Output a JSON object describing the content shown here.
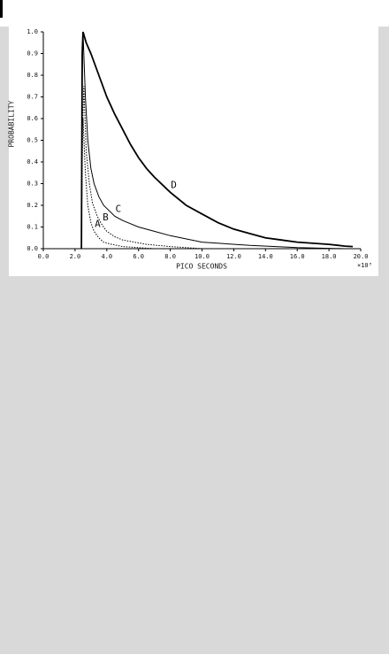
{
  "chart_data": {
    "type": "line",
    "xlabel": "PICO SECONDS",
    "x_unit": "×10³",
    "ylabel": "PROBABILITY",
    "xlim": [
      0,
      20
    ],
    "ylim": [
      0,
      1
    ],
    "xticks": [
      {
        "value": 0,
        "label": "0.0"
      },
      {
        "value": 2,
        "label": "2.0"
      },
      {
        "value": 4,
        "label": "4.0"
      },
      {
        "value": 6,
        "label": "6.0"
      },
      {
        "value": 8,
        "label": "8.0"
      },
      {
        "value": 10,
        "label": "10.0"
      },
      {
        "value": 12,
        "label": "12.0"
      },
      {
        "value": 14,
        "label": "14.0"
      },
      {
        "value": 16,
        "label": "16.0"
      },
      {
        "value": 18,
        "label": "18.0"
      },
      {
        "value": 20,
        "label": "20.0"
      }
    ],
    "yticks": [
      {
        "value": 0,
        "label": "0.0"
      },
      {
        "value": 0.1,
        "label": "0.1"
      },
      {
        "value": 0.2,
        "label": "0.2"
      },
      {
        "value": 0.3,
        "label": "0.3"
      },
      {
        "value": 0.4,
        "label": "0.4"
      },
      {
        "value": 0.5,
        "label": "0.5"
      },
      {
        "value": 0.6,
        "label": "0.6"
      },
      {
        "value": 0.7,
        "label": "0.7"
      },
      {
        "value": 0.8,
        "label": "0.8"
      },
      {
        "value": 0.9,
        "label": "0.9"
      },
      {
        "value": 1,
        "label": "1.0"
      }
    ],
    "series": [
      {
        "name": "A",
        "color": "#000000",
        "line_style": "dotted",
        "x": [
          2.4,
          2.45,
          2.5,
          2.65,
          2.8,
          3.0,
          3.2,
          3.5,
          3.8,
          4.3,
          5.0,
          6.0,
          7.0
        ],
        "values": [
          0,
          0.4,
          0.6,
          0.35,
          0.2,
          0.12,
          0.08,
          0.05,
          0.03,
          0.02,
          0.01,
          0.005,
          0
        ]
      },
      {
        "name": "B",
        "color": "#000000",
        "line_style": "dotted",
        "x": [
          2.4,
          2.45,
          2.55,
          2.7,
          2.9,
          3.1,
          3.4,
          3.7,
          4.0,
          4.5,
          5.0,
          6.5,
          8.0,
          10.0
        ],
        "values": [
          0,
          0.5,
          0.75,
          0.45,
          0.3,
          0.21,
          0.15,
          0.11,
          0.08,
          0.055,
          0.04,
          0.02,
          0.01,
          0
        ]
      },
      {
        "name": "C",
        "color": "#000000",
        "line_style": "solid",
        "x": [
          2.4,
          2.45,
          2.5,
          2.65,
          2.8,
          3.0,
          3.2,
          3.5,
          3.8,
          4.5,
          5.0,
          6.0,
          7.0,
          8.0,
          10.0,
          13.0,
          16.0,
          19.0
        ],
        "values": [
          0,
          0.8,
          1.0,
          0.7,
          0.5,
          0.37,
          0.3,
          0.24,
          0.2,
          0.15,
          0.13,
          0.1,
          0.08,
          0.06,
          0.03,
          0.015,
          0.005,
          0
        ]
      },
      {
        "name": "D",
        "color": "#000000",
        "line_style": "solid",
        "x": [
          2.4,
          2.45,
          2.5,
          2.7,
          3.0,
          3.5,
          4.0,
          4.5,
          5.0,
          5.5,
          6.0,
          6.5,
          7.0,
          8.0,
          9.0,
          10.0,
          11.0,
          12.0,
          13.0,
          14.0,
          15.0,
          16.0,
          17.0,
          18.0,
          19.0,
          19.5
        ],
        "values": [
          0,
          0.9,
          1.0,
          0.95,
          0.9,
          0.8,
          0.7,
          0.62,
          0.55,
          0.48,
          0.42,
          0.37,
          0.33,
          0.26,
          0.2,
          0.16,
          0.12,
          0.09,
          0.07,
          0.05,
          0.04,
          0.03,
          0.025,
          0.02,
          0.012,
          0.01
        ]
      }
    ]
  }
}
